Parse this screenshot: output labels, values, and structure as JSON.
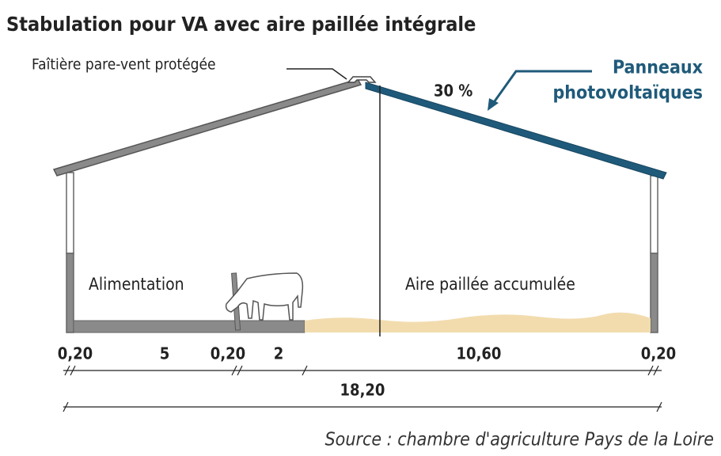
{
  "header": {
    "title": "Stabulation pour VA avec aire paillée intégrale"
  },
  "labels": {
    "ridge": "Faîtière pare-vent protégée",
    "slope": "30 %",
    "panels_line1": "Panneaux",
    "panels_line2": "photovoltaïques",
    "feeding": "Alimentation",
    "bedding": "Aire paillée accumulée"
  },
  "dimensions": {
    "parts": [
      "0,20",
      "5",
      "0,20",
      "2",
      "10,60",
      "0,20"
    ],
    "total": "18,20"
  },
  "source": "Source : chambre d'agriculture Pays de la Loire"
}
